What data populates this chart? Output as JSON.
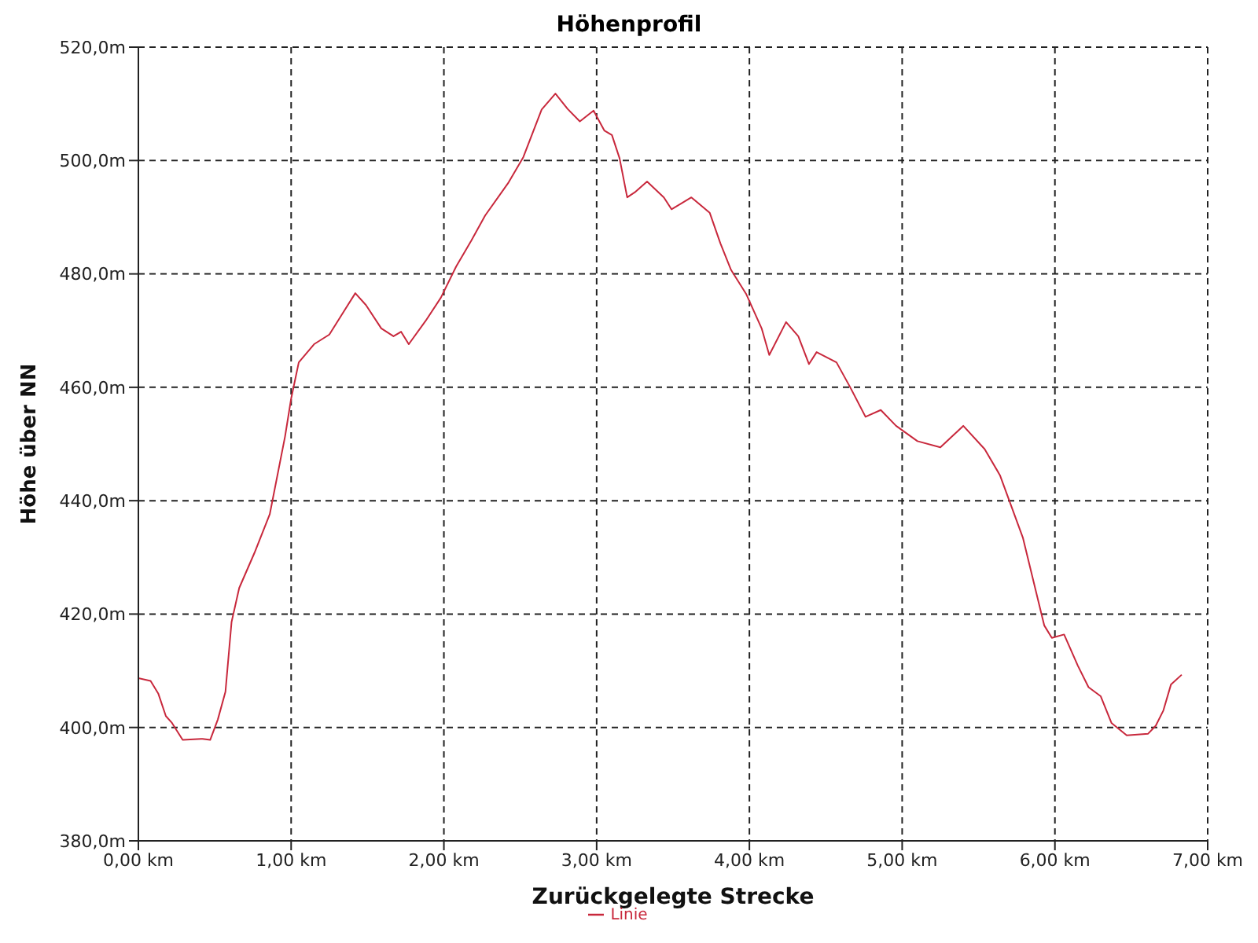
{
  "chart_data": {
    "type": "line",
    "title": "Höhenprofil",
    "xlabel": "Zurückgelegte Strecke",
    "ylabel": "Höhe über NN",
    "x": [
      0,
      0.08,
      0.13,
      0.18,
      0.22,
      0.29,
      0.42,
      0.47,
      0.52,
      0.57,
      0.61,
      0.66,
      0.76,
      0.86,
      0.96,
      1.0,
      1.05,
      1.15,
      1.25,
      1.35,
      1.42,
      1.49,
      1.59,
      1.67,
      1.72,
      1.77,
      1.88,
      1.98,
      2.08,
      2.18,
      2.27,
      2.42,
      2.52,
      2.64,
      2.73,
      2.81,
      2.89,
      2.98,
      3.05,
      3.1,
      3.15,
      3.2,
      3.25,
      3.33,
      3.44,
      3.49,
      3.62,
      3.74,
      3.81,
      3.88,
      3.98,
      4.08,
      4.13,
      4.24,
      4.32,
      4.39,
      4.44,
      4.57,
      4.66,
      4.76,
      4.86,
      4.96,
      5.1,
      5.25,
      5.4,
      5.54,
      5.64,
      5.79,
      5.93,
      5.98,
      6.06,
      6.15,
      6.22,
      6.3,
      6.37,
      6.47,
      6.61,
      6.66,
      6.71,
      6.76,
      6.83
    ],
    "series": [
      {
        "name": "Linie",
        "color": "#c8283c",
        "values": [
          408.7,
          408.2,
          406,
          402,
          400.8,
          397.8,
          398,
          397.8,
          401.4,
          406.3,
          418.6,
          424.6,
          430.8,
          437.6,
          451.3,
          458,
          464.4,
          467.6,
          469.3,
          473.6,
          476.6,
          474.5,
          470.4,
          469,
          469.8,
          467.6,
          471.7,
          475.8,
          481.3,
          485.9,
          490.3,
          496,
          500.6,
          509,
          511.8,
          509.1,
          506.9,
          508.8,
          505.3,
          504.5,
          500.4,
          493.5,
          494.4,
          496.3,
          493.5,
          491.4,
          493.5,
          490.8,
          485.4,
          480.7,
          476.4,
          470.4,
          465.7,
          471.5,
          469,
          464.1,
          466.2,
          464.4,
          460,
          454.8,
          456,
          453.2,
          450.5,
          449.4,
          453.2,
          449.1,
          444.5,
          433.5,
          418,
          415.8,
          416.4,
          410.9,
          407.1,
          405.5,
          400.8,
          398.6,
          398.9,
          400.3,
          403,
          407.6,
          409.3
        ]
      }
    ],
    "xlim": [
      0,
      7
    ],
    "xticks": [
      {
        "value": 0,
        "label": "0,00 km"
      },
      {
        "value": 1,
        "label": "1,00 km"
      },
      {
        "value": 2,
        "label": "2,00 km"
      },
      {
        "value": 3,
        "label": "3,00 km"
      },
      {
        "value": 4,
        "label": "4,00 km"
      },
      {
        "value": 5,
        "label": "5,00 km"
      },
      {
        "value": 6,
        "label": "6,00 km"
      },
      {
        "value": 7,
        "label": "7,00 km"
      }
    ],
    "ylim": [
      380,
      520
    ],
    "yticks": [
      {
        "value": 380,
        "label": "380,0m"
      },
      {
        "value": 400,
        "label": "400,0m"
      },
      {
        "value": 420,
        "label": "420,0m"
      },
      {
        "value": 440,
        "label": "440,0m"
      },
      {
        "value": 460,
        "label": "460,0m"
      },
      {
        "value": 480,
        "label": "480,0m"
      },
      {
        "value": 500,
        "label": "500,0m"
      },
      {
        "value": 520,
        "label": "520,0m"
      }
    ],
    "grid": true,
    "legend": "bottom",
    "marker": "none",
    "line_style": "solid"
  }
}
